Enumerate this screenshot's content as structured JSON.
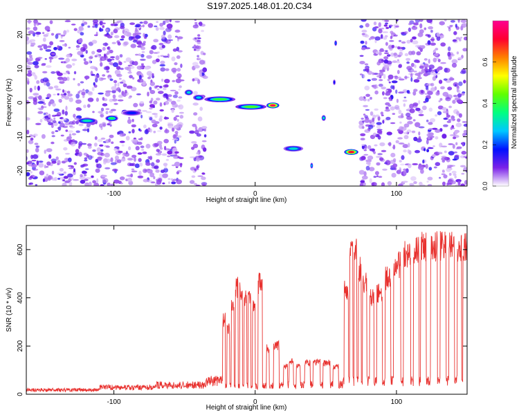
{
  "title": "S197.2025.148.01.20.C34",
  "chart_data": [
    {
      "type": "heatmap",
      "xlabel": "Height of straight line (km)",
      "ylabel": "Frequency (Hz)",
      "xlim": [
        -162,
        150
      ],
      "ylim": [
        -24.5,
        24.5
      ],
      "xticks": [
        -100,
        0,
        100
      ],
      "yticks": [
        -20,
        -10,
        0,
        10,
        20
      ],
      "grid": false,
      "colorbar": {
        "label": "Normalized spectral amplitude",
        "range": [
          0,
          0.8
        ],
        "ticks": [
          0,
          0.2,
          0.4,
          0.6
        ],
        "colors": [
          "#ffffff",
          "#7b22e8",
          "#0010ff",
          "#00c8ff",
          "#00ff80",
          "#60ff00",
          "#ffff00",
          "#ff8000",
          "#ff0030",
          "#ff0090"
        ]
      },
      "noise_regions_x": [
        [
          -162,
          -52
        ],
        [
          -45,
          -35
        ],
        [
          75,
          150
        ]
      ],
      "features": [
        {
          "x": [
            -126,
            -112
          ],
          "freq": -5.3,
          "amp": 0.32
        },
        {
          "x": [
            -106,
            -97
          ],
          "freq": -4.6,
          "amp": 0.38
        },
        {
          "x": [
            -95,
            -80
          ],
          "freq": -3.0,
          "amp": 0.18
        },
        {
          "x": [
            -50,
            -44
          ],
          "freq": 3.0,
          "amp": 0.3
        },
        {
          "x": [
            -44,
            -36
          ],
          "freq": 1.5,
          "amp": 0.28
        },
        {
          "x": [
            -36,
            -14
          ],
          "freq": 1.0,
          "amp": 0.4
        },
        {
          "x": [
            -14,
            8
          ],
          "freq": -1.2,
          "amp": 0.42
        },
        {
          "x": [
            8,
            17
          ],
          "freq": -0.8,
          "amp": 0.75
        },
        {
          "x": [
            20,
            34
          ],
          "freq": -13.5,
          "amp": 0.3
        },
        {
          "x": [
            39,
            41
          ],
          "freq": -18.5,
          "amp": 0.28
        },
        {
          "x": [
            47,
            50
          ],
          "freq": -4.5,
          "amp": 0.32
        },
        {
          "x": [
            63,
            73
          ],
          "freq": -14.5,
          "amp": 0.72
        },
        {
          "x": [
            56,
            58
          ],
          "freq": 17.5,
          "amp": 0.22
        },
        {
          "x": [
            55,
            57
          ],
          "freq": 6.0,
          "amp": 0.18
        }
      ]
    },
    {
      "type": "line",
      "xlabel": "Height of straight line (km)",
      "ylabel": "SNR (10 * v/v)",
      "xlim": [
        -162,
        150
      ],
      "ylim": [
        0,
        700
      ],
      "xticks": [
        -100,
        0,
        100
      ],
      "yticks": [
        0,
        200,
        400,
        600
      ],
      "grid": false,
      "color": "#e8312e",
      "baseline_segments": [
        {
          "x": [
            -162,
            -110
          ],
          "snr": 18
        },
        {
          "x": [
            -110,
            -70
          ],
          "snr": 28
        },
        {
          "x": [
            -70,
            -35
          ],
          "snr": 38
        },
        {
          "x": [
            -35,
            -22
          ],
          "snr": 55
        },
        {
          "x": [
            -22,
            20
          ],
          "snr": 35
        },
        {
          "x": [
            20,
            62
          ],
          "snr": 40
        },
        {
          "x": [
            62,
            150
          ],
          "snr": 55
        }
      ],
      "bursts": [
        {
          "x": [
            -23,
            -21
          ],
          "snr": 320
        },
        {
          "x": [
            -20,
            -18
          ],
          "snr": 280
        },
        {
          "x": [
            -17,
            -15
          ],
          "snr": 390
        },
        {
          "x": [
            -14,
            -12
          ],
          "snr": 460
        },
        {
          "x": [
            -11,
            -9
          ],
          "snr": 440
        },
        {
          "x": [
            -8,
            -6
          ],
          "snr": 410
        },
        {
          "x": [
            -5,
            -3
          ],
          "snr": 430
        },
        {
          "x": [
            -2,
            0
          ],
          "snr": 380
        },
        {
          "x": [
            2,
            5
          ],
          "snr": 480
        },
        {
          "x": [
            8,
            10
          ],
          "snr": 200
        },
        {
          "x": [
            13,
            17
          ],
          "snr": 210
        },
        {
          "x": [
            20,
            23
          ],
          "snr": 120
        },
        {
          "x": [
            24,
            27
          ],
          "snr": 140
        },
        {
          "x": [
            29,
            32
          ],
          "snr": 120
        },
        {
          "x": [
            35,
            39
          ],
          "snr": 135
        },
        {
          "x": [
            41,
            46
          ],
          "snr": 140
        },
        {
          "x": [
            48,
            53
          ],
          "snr": 135
        },
        {
          "x": [
            55,
            59
          ],
          "snr": 120
        },
        {
          "x": [
            63,
            66
          ],
          "snr": 450
        },
        {
          "x": [
            67,
            69
          ],
          "snr": 600
        },
        {
          "x": [
            70,
            72
          ],
          "snr": 620
        },
        {
          "x": [
            73,
            75
          ],
          "snr": 540
        },
        {
          "x": [
            76,
            79
          ],
          "snr": 480
        },
        {
          "x": [
            81,
            84
          ],
          "snr": 420
        },
        {
          "x": [
            86,
            90
          ],
          "snr": 440
        },
        {
          "x": [
            92,
            96
          ],
          "snr": 500
        },
        {
          "x": [
            98,
            103
          ],
          "snr": 560
        },
        {
          "x": [
            105,
            110
          ],
          "snr": 600
        },
        {
          "x": [
            112,
            116
          ],
          "snr": 630
        },
        {
          "x": [
            117,
            121
          ],
          "snr": 640
        },
        {
          "x": [
            124,
            129
          ],
          "snr": 640
        },
        {
          "x": [
            131,
            135
          ],
          "snr": 640
        },
        {
          "x": [
            137,
            141
          ],
          "snr": 640
        },
        {
          "x": [
            143,
            146
          ],
          "snr": 630
        },
        {
          "x": [
            147,
            150
          ],
          "snr": 640
        }
      ]
    }
  ]
}
